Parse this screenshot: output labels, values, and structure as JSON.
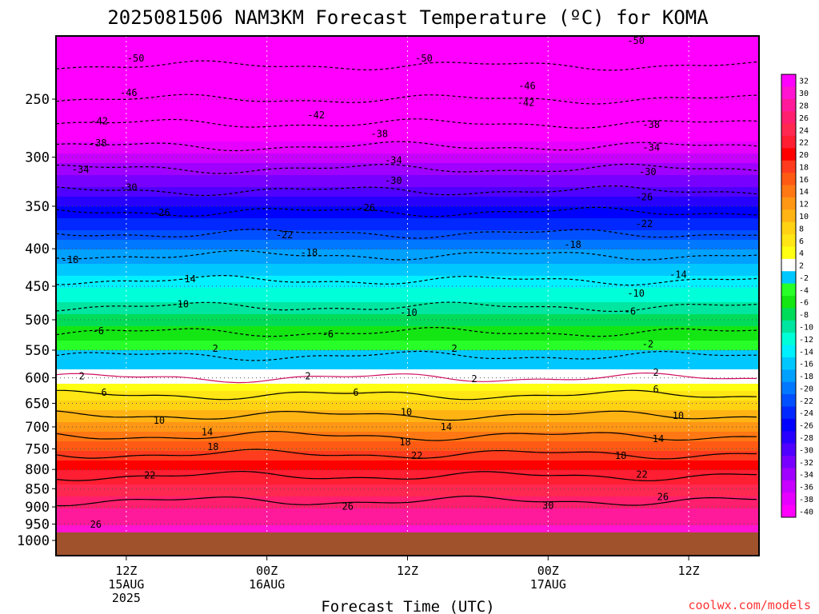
{
  "chart_data": {
    "type": "heatmap",
    "title": "2025081506 NAM3KM Forecast Temperature (ºC) for KOMA",
    "xlabel": "Forecast Time (UTC)",
    "ylabel": "",
    "credit": "coolwx.com/models",
    "y_ticks": [
      250,
      300,
      350,
      400,
      450,
      500,
      550,
      600,
      650,
      700,
      750,
      800,
      850,
      900,
      950,
      1000
    ],
    "ylim": [
      200,
      1000
    ],
    "y_scale": "log",
    "x_ticks": [
      {
        "hour": 12,
        "lines": [
          "12Z",
          "15AUG",
          "2025"
        ]
      },
      {
        "hour": 24,
        "lines": [
          "00Z",
          "16AUG"
        ]
      },
      {
        "hour": 36,
        "lines": [
          "12Z"
        ]
      },
      {
        "hour": 48,
        "lines": [
          "00Z",
          "17AUG"
        ]
      },
      {
        "hour": 60,
        "lines": [
          "12Z"
        ]
      }
    ],
    "xlim": [
      6,
      66
    ],
    "surface_pressure": 975,
    "colorbar_levels": [
      32,
      30,
      28,
      26,
      24,
      22,
      20,
      18,
      16,
      14,
      12,
      10,
      8,
      6,
      4,
      2,
      -2,
      -4,
      -6,
      -8,
      -10,
      -12,
      -14,
      -16,
      -18,
      -20,
      -22,
      -24,
      -26,
      -28,
      -30,
      -32,
      -34,
      -36,
      -38,
      -40
    ],
    "contour_levels": [
      -50,
      -46,
      -42,
      -38,
      -34,
      -30,
      -26,
      -22,
      -18,
      -14,
      -10,
      -6,
      -2,
      2,
      6,
      10,
      14,
      18,
      22,
      26,
      30
    ],
    "temperature_profile": [
      {
        "p": 200,
        "t": -54
      },
      {
        "p": 250,
        "t": -46
      },
      {
        "p": 300,
        "t": -36
      },
      {
        "p": 350,
        "t": -27
      },
      {
        "p": 400,
        "t": -19
      },
      {
        "p": 450,
        "t": -13
      },
      {
        "p": 500,
        "t": -8
      },
      {
        "p": 550,
        "t": -3
      },
      {
        "p": 600,
        "t": 2
      },
      {
        "p": 650,
        "t": 8
      },
      {
        "p": 700,
        "t": 12
      },
      {
        "p": 750,
        "t": 17
      },
      {
        "p": 800,
        "t": 21
      },
      {
        "p": 850,
        "t": 24
      },
      {
        "p": 900,
        "t": 27
      },
      {
        "p": 950,
        "t": 29
      }
    ],
    "contour_label_marks": [
      {
        "text": "-50",
        "hour": 12.8,
        "p": 220
      },
      {
        "text": "-50",
        "hour": 37.4,
        "p": 220
      },
      {
        "text": "-50",
        "hour": 55.5,
        "p": 208
      },
      {
        "text": "-46",
        "hour": 12.2,
        "p": 245
      },
      {
        "text": "-46",
        "hour": 46.2,
        "p": 240
      },
      {
        "text": "-42",
        "hour": 9.7,
        "p": 268
      },
      {
        "text": "-42",
        "hour": 28.2,
        "p": 263
      },
      {
        "text": "-42",
        "hour": 46.1,
        "p": 253
      },
      {
        "text": "-38",
        "hour": 9.6,
        "p": 287
      },
      {
        "text": "-38",
        "hour": 33.6,
        "p": 279
      },
      {
        "text": "-38",
        "hour": 56.8,
        "p": 271
      },
      {
        "text": "-34",
        "hour": 8.1,
        "p": 312
      },
      {
        "text": "-34",
        "hour": 34.8,
        "p": 303
      },
      {
        "text": "-34",
        "hour": 56.8,
        "p": 291
      },
      {
        "text": "-30",
        "hour": 12.2,
        "p": 330
      },
      {
        "text": "-30",
        "hour": 34.8,
        "p": 323
      },
      {
        "text": "-30",
        "hour": 56.5,
        "p": 314
      },
      {
        "text": "-26",
        "hour": 15.0,
        "p": 357
      },
      {
        "text": "-26",
        "hour": 32.5,
        "p": 352
      },
      {
        "text": "-26",
        "hour": 56.2,
        "p": 340
      },
      {
        "text": "-22",
        "hour": 25.5,
        "p": 383
      },
      {
        "text": "-22",
        "hour": 56.2,
        "p": 370
      },
      {
        "text": "-18",
        "hour": 7.2,
        "p": 414
      },
      {
        "text": "-18",
        "hour": 27.6,
        "p": 405
      },
      {
        "text": "-18",
        "hour": 50.1,
        "p": 395
      },
      {
        "text": "-14",
        "hour": 17.2,
        "p": 440
      },
      {
        "text": "-14",
        "hour": 59.1,
        "p": 434
      },
      {
        "text": "-10",
        "hour": 16.6,
        "p": 476
      },
      {
        "text": "-10",
        "hour": 36.1,
        "p": 489
      },
      {
        "text": "-10",
        "hour": 55.5,
        "p": 460
      },
      {
        "text": "-6",
        "hour": 9.6,
        "p": 518
      },
      {
        "text": "-6",
        "hour": 29.2,
        "p": 523
      },
      {
        "text": "-6",
        "hour": 55.0,
        "p": 487
      },
      {
        "text": "-2",
        "hour": 56.5,
        "p": 540
      },
      {
        "text": "2",
        "hour": 19.6,
        "p": 547
      },
      {
        "text": "2",
        "hour": 40.0,
        "p": 547
      },
      {
        "text": "2",
        "hour": 8.2,
        "p": 597
      },
      {
        "text": "2",
        "hour": 27.5,
        "p": 597
      },
      {
        "text": "2",
        "hour": 41.7,
        "p": 602
      },
      {
        "text": "2",
        "hour": 57.2,
        "p": 590
      },
      {
        "text": "6",
        "hour": 10.1,
        "p": 628
      },
      {
        "text": "6",
        "hour": 31.6,
        "p": 628
      },
      {
        "text": "6",
        "hour": 57.2,
        "p": 622
      },
      {
        "text": "10",
        "hour": 14.8,
        "p": 686
      },
      {
        "text": "10",
        "hour": 35.9,
        "p": 668
      },
      {
        "text": "10",
        "hour": 59.1,
        "p": 676
      },
      {
        "text": "14",
        "hour": 18.9,
        "p": 712
      },
      {
        "text": "14",
        "hour": 39.3,
        "p": 700
      },
      {
        "text": "14",
        "hour": 57.4,
        "p": 727
      },
      {
        "text": "18",
        "hour": 19.4,
        "p": 745
      },
      {
        "text": "18",
        "hour": 35.8,
        "p": 734
      },
      {
        "text": "18",
        "hour": 54.2,
        "p": 766
      },
      {
        "text": "22",
        "hour": 14.0,
        "p": 815
      },
      {
        "text": "22",
        "hour": 36.8,
        "p": 766
      },
      {
        "text": "22",
        "hour": 56.0,
        "p": 813
      },
      {
        "text": "26",
        "hour": 30.9,
        "p": 899
      },
      {
        "text": "26",
        "hour": 57.8,
        "p": 872
      },
      {
        "text": "26",
        "hour": 9.4,
        "p": 951
      },
      {
        "text": "30",
        "hour": 48.0,
        "p": 896
      }
    ]
  }
}
